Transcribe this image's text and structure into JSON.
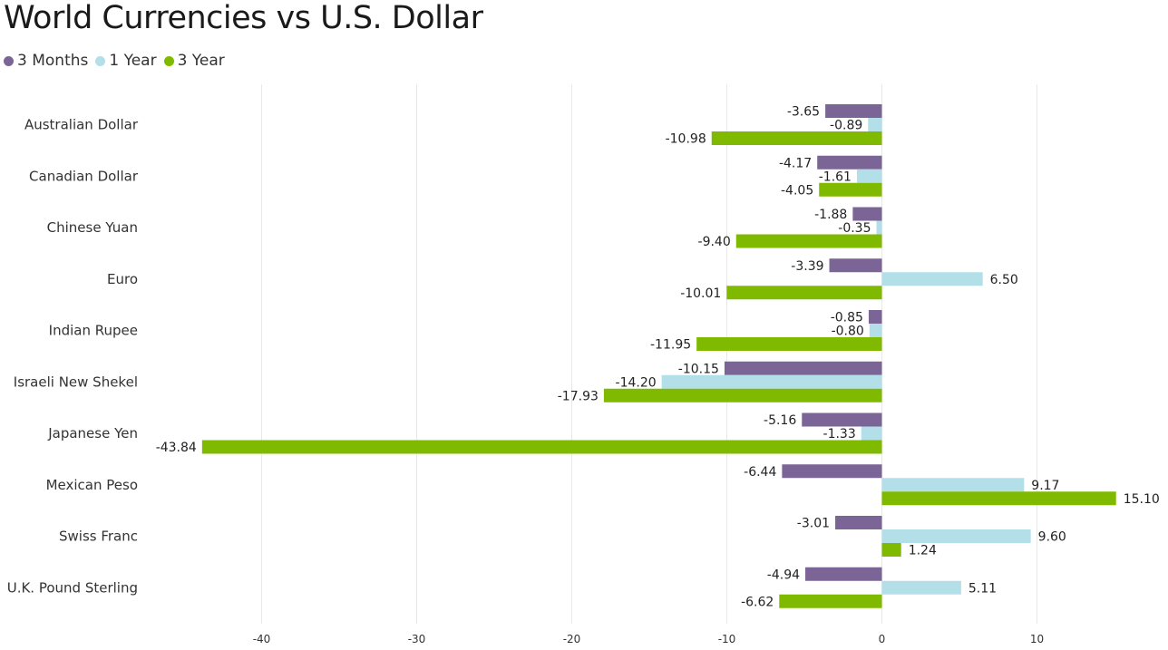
{
  "chart_data": {
    "type": "bar",
    "orientation": "horizontal",
    "title": "World Currencies vs U.S. Dollar",
    "categories": [
      "Australian Dollar",
      "Canadian Dollar",
      "Chinese Yuan",
      "Euro",
      "Indian Rupee",
      "Israeli New Shekel",
      "Japanese Yen",
      "Mexican Peso",
      "Swiss Franc",
      "U.K. Pound Sterling"
    ],
    "series": [
      {
        "name": "3 Months",
        "color": "#7b6597",
        "values": [
          -3.65,
          -4.17,
          -1.88,
          -3.39,
          -0.85,
          -10.15,
          -5.16,
          -6.44,
          -3.01,
          -4.94
        ],
        "labels": [
          "-3.65",
          "-4.17",
          "-1.88",
          "-3.39",
          "-0.85",
          "-10.15",
          "-5.16",
          "-6.44",
          "-3.01",
          "-4.94"
        ]
      },
      {
        "name": "1 Year",
        "color": "#b2dfe8",
        "values": [
          -0.89,
          -1.61,
          -0.35,
          6.5,
          -0.8,
          -14.2,
          -1.33,
          9.17,
          9.6,
          5.11
        ],
        "labels": [
          "-0.89",
          "-1.61",
          "-0.35",
          "6.50",
          "-0.80",
          "-14.20",
          "-1.33",
          "9.17",
          "9.60",
          "5.11"
        ]
      },
      {
        "name": "3 Year",
        "color": "#7fba00",
        "values": [
          -10.98,
          -4.05,
          -9.4,
          -10.01,
          -11.95,
          -17.93,
          -43.84,
          15.1,
          1.24,
          -6.62
        ],
        "labels": [
          "-10.98",
          "-4.05",
          "-9.40",
          "-10.01",
          "-11.95",
          "-17.93",
          "-43.84",
          "15.10",
          "1.24",
          "-6.62"
        ]
      }
    ],
    "xlim": [
      -50,
      17
    ],
    "xticks": [
      -40,
      -30,
      -20,
      -10,
      0,
      10
    ],
    "xtick_labels": [
      "-40",
      "-30",
      "-20",
      "-10",
      "0",
      "10"
    ],
    "grid": true,
    "legend_position": "top-left"
  }
}
